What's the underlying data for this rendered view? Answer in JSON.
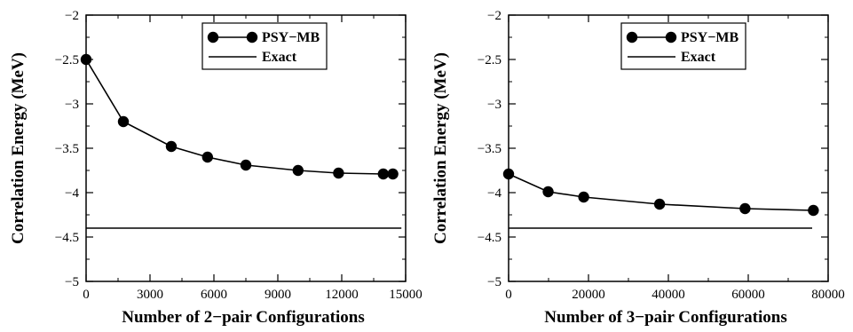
{
  "chart_data": [
    {
      "type": "line",
      "xlabel": "Number of 2−pair Configurations",
      "ylabel": "Correlation Energy (MeV)",
      "xlim": [
        0,
        15000
      ],
      "ylim": [
        -5,
        -2
      ],
      "xticks": [
        0,
        3000,
        6000,
        9000,
        12000,
        15000
      ],
      "yticks": [
        -2,
        -2.5,
        -3,
        -3.5,
        -4,
        -4.5,
        -5
      ],
      "xtick_labels": [
        "0",
        "3000",
        "6000",
        "9000",
        "12000",
        "15000"
      ],
      "ytick_labels": [
        "−2",
        "−2.5",
        "−3",
        "−3.5",
        "−4",
        "−4.5",
        "−5"
      ],
      "grid": false,
      "legend_position": "top-right",
      "series": [
        {
          "name": "PSY−MB",
          "style": "line-markers",
          "x": [
            0,
            1750,
            4000,
            5700,
            7500,
            9950,
            11850,
            13950,
            14400
          ],
          "y": [
            -2.5,
            -3.2,
            -3.48,
            -3.6,
            -3.69,
            -3.75,
            -3.78,
            -3.79,
            -3.79
          ]
        },
        {
          "name": "Exact",
          "style": "line",
          "x": [
            0,
            14800
          ],
          "y": [
            -4.4,
            -4.4
          ]
        }
      ]
    },
    {
      "type": "line",
      "xlabel": "Number of 3−pair Configurations",
      "ylabel": "Correlation Energy (MeV)",
      "xlim": [
        0,
        80000
      ],
      "ylim": [
        -5,
        -2
      ],
      "xticks": [
        0,
        20000,
        40000,
        60000,
        80000
      ],
      "yticks": [
        -2,
        -2.5,
        -3,
        -3.5,
        -4,
        -4.5,
        -5
      ],
      "xtick_labels": [
        "0",
        "20000",
        "40000",
        "60000",
        "80000"
      ],
      "ytick_labels": [
        "−2",
        "−2.5",
        "−3",
        "−3.5",
        "−4",
        "−4.5",
        "−5"
      ],
      "grid": false,
      "legend_position": "top-right",
      "series": [
        {
          "name": "PSY−MB",
          "style": "line-markers",
          "x": [
            0,
            9900,
            18800,
            37800,
            59200,
            76300
          ],
          "y": [
            -3.79,
            -3.99,
            -4.05,
            -4.13,
            -4.18,
            -4.2
          ]
        },
        {
          "name": "Exact",
          "style": "line",
          "x": [
            0,
            76000
          ],
          "y": [
            -4.4,
            -4.4
          ]
        }
      ]
    }
  ]
}
